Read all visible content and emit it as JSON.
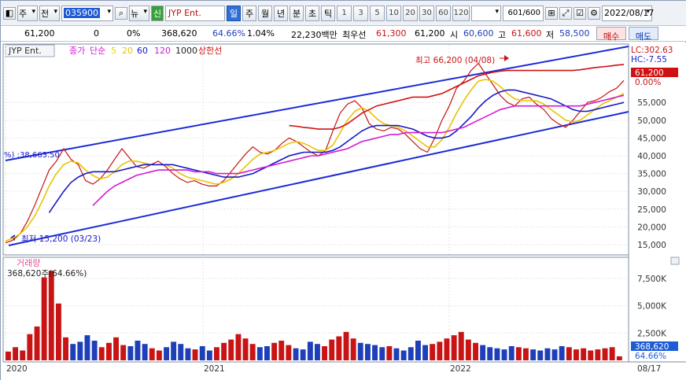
{
  "toolbar": {
    "market": "주",
    "period_type": "전",
    "symbol": "035900",
    "news": "뉴",
    "credit": "신",
    "name": "JYP Ent.",
    "periods": [
      "일",
      "주",
      "월",
      "년",
      "분",
      "초",
      "틱"
    ],
    "numbers": [
      "1",
      "3",
      "5",
      "10",
      "20",
      "30",
      "60",
      "120"
    ],
    "count": "601/600",
    "date": "2022/08/17"
  },
  "quotes": {
    "price": "61,200",
    "change": "0",
    "change_pct": "0%",
    "volume": "368,620",
    "vol_ratio": "64.66%",
    "turnover": "1.04%",
    "amount": "22,230백만",
    "best_ask_label": "최우선",
    "best_ask": "61,300",
    "best_bid": "61,200",
    "open_label": "시",
    "open": "60,600",
    "high_label": "고",
    "high": "61,600",
    "low_label": "저",
    "low": "58,500",
    "buy": "매수",
    "sell": "매도"
  },
  "chart_data": {
    "type": "line",
    "indicator": {
      "symbol": "JYP Ent.",
      "price_label": "종가",
      "ma_type": "단순",
      "ma": [
        {
          "period": "5",
          "color": "#e6d800"
        },
        {
          "period": "20",
          "color": "#e8c400"
        },
        {
          "period": "60",
          "color": "#1717c8"
        },
        {
          "period": "120",
          "color": "#d21bd2"
        },
        {
          "period": "1000",
          "color": "#222222"
        }
      ],
      "extra": "상한선",
      "extra_color": "#d11111"
    },
    "x_labels": [
      "2020",
      "2021",
      "2022",
      "08/17"
    ],
    "y_ticks": [
      "55,000",
      "50,000",
      "45,000",
      "40,000",
      "35,000",
      "30,000",
      "25,000",
      "20,000",
      "15,000"
    ],
    "ylim": [
      13000,
      67000
    ],
    "high_annotation": "최고 66,200 (04/08)",
    "low_annotation": "최저 15,200 (03/23)",
    "channel_label": "%) :38,663.50",
    "lc": "LC:302.63",
    "hc": "HC:-7.55",
    "last_price_tag": "61,200",
    "last_pct_tag": "0.00%",
    "series": [
      {
        "name": "price",
        "color": "#c81414",
        "values": [
          15500,
          16200,
          18000,
          21500,
          26000,
          31000,
          36000,
          38500,
          42000,
          39000,
          37500,
          33000,
          32000,
          33500,
          36000,
          39000,
          42000,
          39500,
          37000,
          36500,
          37500,
          38500,
          37000,
          35000,
          33500,
          32500,
          33000,
          32000,
          31500,
          31500,
          33000,
          35500,
          38000,
          40500,
          42500,
          41000,
          40500,
          41500,
          43500,
          45000,
          44000,
          42500,
          41000,
          40000,
          41500,
          47000,
          52000,
          54500,
          55500,
          53500,
          49000,
          47500,
          47000,
          48000,
          47500,
          46000,
          44000,
          42000,
          41000,
          45000,
          50000,
          54000,
          59000,
          61000,
          64000,
          66000,
          63000,
          60000,
          57000,
          55000,
          54000,
          56000,
          56500,
          54500,
          53000,
          50500,
          49000,
          48000,
          50000,
          52500,
          55000,
          55500,
          56500,
          58000,
          59000,
          61200
        ]
      },
      {
        "name": "ma20",
        "color": "#e8c400",
        "values": [
          16000,
          16800,
          18000,
          20000,
          23000,
          27000,
          31500,
          35000,
          37500,
          38500,
          38000,
          36000,
          34500,
          33500,
          34000,
          35500,
          37500,
          38500,
          38500,
          38000,
          37500,
          37500,
          37500,
          36500,
          35000,
          34000,
          33500,
          33000,
          32500,
          32000,
          32500,
          33500,
          35000,
          37000,
          39000,
          40500,
          41000,
          41500,
          42500,
          43500,
          44000,
          43500,
          42500,
          41500,
          41500,
          43000,
          46500,
          50000,
          52500,
          53500,
          52500,
          50500,
          49000,
          48500,
          48000,
          47000,
          45500,
          44000,
          42500,
          42500,
          44500,
          48000,
          52000,
          55500,
          58500,
          61000,
          61500,
          61000,
          59500,
          57500,
          56000,
          55500,
          55500,
          55500,
          54500,
          53000,
          51500,
          50000,
          49500,
          50000,
          51500,
          53000,
          54500,
          55500,
          56500,
          57500
        ]
      },
      {
        "name": "ma60",
        "color": "#1717c8",
        "values": [
          null,
          null,
          null,
          null,
          null,
          null,
          24000,
          27000,
          30000,
          32500,
          34000,
          35000,
          35500,
          35500,
          35500,
          35500,
          36000,
          36500,
          37000,
          37500,
          37500,
          37500,
          37500,
          37500,
          37000,
          36500,
          36000,
          35500,
          35000,
          34500,
          34000,
          34000,
          34000,
          34500,
          35000,
          36000,
          37000,
          38000,
          39000,
          40000,
          40500,
          41000,
          41000,
          41000,
          41000,
          41500,
          42500,
          44000,
          45500,
          47000,
          48000,
          48500,
          48500,
          48500,
          48500,
          48000,
          47500,
          46500,
          45500,
          45000,
          45000,
          45500,
          47000,
          49000,
          51000,
          53500,
          55500,
          57000,
          58000,
          58500,
          58500,
          58000,
          57500,
          57000,
          56500,
          56000,
          55000,
          54000,
          53000,
          52500,
          52500,
          53000,
          53500,
          54000,
          54500,
          55000
        ]
      },
      {
        "name": "ma120",
        "color": "#d21bd2",
        "values": [
          null,
          null,
          null,
          null,
          null,
          null,
          null,
          null,
          null,
          null,
          null,
          null,
          26000,
          28000,
          30000,
          31500,
          32500,
          33500,
          34500,
          35000,
          35500,
          36000,
          36000,
          36000,
          36000,
          36000,
          35500,
          35500,
          35500,
          35000,
          35000,
          35000,
          35000,
          35500,
          36000,
          36500,
          37000,
          37500,
          38000,
          38500,
          39000,
          39500,
          40000,
          40000,
          40500,
          41000,
          41500,
          42000,
          43000,
          44000,
          44500,
          45000,
          45500,
          46000,
          46000,
          46500,
          46500,
          46500,
          46500,
          46500,
          46500,
          47000,
          47500,
          48000,
          49000,
          50000,
          51000,
          52000,
          53000,
          53500,
          54000,
          54000,
          54000,
          54000,
          54000,
          54000,
          54000,
          54000,
          54000,
          54000,
          54500,
          55000,
          55500,
          56000,
          56500,
          57000
        ]
      },
      {
        "name": "upper",
        "color": "#d11111",
        "values": [
          null,
          null,
          null,
          null,
          null,
          null,
          null,
          null,
          null,
          null,
          null,
          null,
          null,
          null,
          null,
          null,
          null,
          null,
          null,
          null,
          null,
          null,
          null,
          null,
          null,
          null,
          null,
          null,
          null,
          null,
          null,
          null,
          null,
          null,
          null,
          null,
          null,
          null,
          null,
          48500,
          48300,
          48000,
          47800,
          47500,
          47500,
          47500,
          48000,
          49000,
          50500,
          52000,
          53000,
          54000,
          54500,
          55000,
          55500,
          56000,
          56500,
          56500,
          56500,
          57000,
          57500,
          58500,
          59500,
          60500,
          61500,
          62500,
          63000,
          63500,
          63800,
          64000,
          64000,
          64000,
          64000,
          64000,
          64000,
          64000,
          64000,
          64000,
          64000,
          64200,
          64500,
          64800,
          65000,
          65200,
          65500,
          65700
        ]
      }
    ],
    "volume": {
      "title": "거래량",
      "current": "368,620주(64.66%)",
      "y_ticks": [
        "7,500K",
        "5,000K",
        "2,500K"
      ],
      "ylim": [
        0,
        8500
      ],
      "last_tag": "368,620",
      "last_pct": "64.66%",
      "values": [
        800,
        1200,
        900,
        2400,
        3100,
        7600,
        8200,
        5200,
        2100,
        1500,
        1700,
        2300,
        1800,
        1200,
        1600,
        2100,
        1400,
        1300,
        1800,
        1500,
        1100,
        900,
        1200,
        1700,
        1500,
        1100,
        1000,
        1300,
        900,
        1200,
        1600,
        1900,
        2400,
        2000,
        1500,
        1200,
        1300,
        1600,
        1800,
        1400,
        1100,
        1000,
        1700,
        1500,
        1300,
        1900,
        2200,
        2600,
        2000,
        1600,
        1500,
        1400,
        1200,
        1300,
        1100,
        900,
        1200,
        1800,
        1400,
        1500,
        1700,
        2000,
        2300,
        2600,
        1900,
        1600,
        1400,
        1200,
        1100,
        1000,
        1300,
        1200,
        1100,
        1000,
        900,
        1100,
        1000,
        1300,
        1200,
        1000,
        1100,
        900,
        1000,
        1100,
        1200,
        368
      ]
    }
  }
}
